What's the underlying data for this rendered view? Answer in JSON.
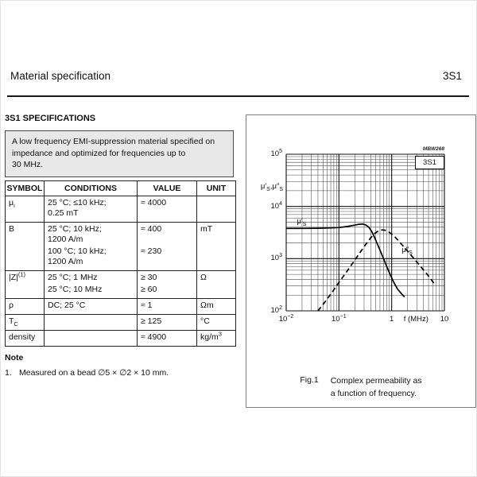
{
  "page": {
    "header_title": "Material specification",
    "header_code": "3S1"
  },
  "specs": {
    "section_title": "3S1 SPECIFICATIONS",
    "desc_lines": [
      "A low frequency EMI-suppression material specified on",
      "impedance and optimized for frequencies up to",
      "30 MHz."
    ],
    "table": {
      "headers": [
        "SYMBOL",
        "CONDITIONS",
        "VALUE",
        "UNIT"
      ],
      "rows": [
        {
          "symbol_html": "μ<sub>i</sub>",
          "unit_html": "",
          "subs": [
            {
              "cond": [
                "25 °C; ≤10 kHz;",
                "0.25 mT"
              ],
              "value": "≈ 4000"
            }
          ]
        },
        {
          "symbol_html": "B",
          "unit_html": "mT",
          "subs": [
            {
              "cond": [
                "25 °C; 10 kHz;",
                "1200 A/m"
              ],
              "value": "≈ 400"
            },
            {
              "cond": [
                "100 °C; 10 kHz;",
                "1200 A/m"
              ],
              "value": "≈ 230"
            }
          ]
        },
        {
          "symbol_html": "|Z|<sup>(1)</sup>",
          "unit_html": "Ω",
          "subs": [
            {
              "cond": [
                "25 °C; 1 MHz"
              ],
              "value": "≥ 30"
            },
            {
              "cond": [
                "25 °C; 10 MHz"
              ],
              "value": "≥ 60"
            }
          ]
        },
        {
          "symbol_html": "ρ",
          "unit_html": "Ωm",
          "subs": [
            {
              "cond": [
                "DC; 25 °C"
              ],
              "value": "≈ 1"
            }
          ]
        },
        {
          "symbol_html": "T<sub>C</sub>",
          "unit_html": "°C",
          "subs": [
            {
              "cond": [
                ""
              ],
              "value": "≥ 125"
            }
          ]
        },
        {
          "symbol_html": "density",
          "unit_html": "kg/m<sup>3</sup>",
          "subs": [
            {
              "cond": [
                ""
              ],
              "value": "≈ 4900"
            }
          ]
        }
      ]
    },
    "note_title": "Note",
    "notes": [
      {
        "num": "1.",
        "text": "Measured on a bead ∅5 × ∅2 × 10 mm."
      }
    ]
  },
  "figure": {
    "caption_label": "Fig.1",
    "caption_lines": [
      "Complex permeability as",
      "a function of frequency."
    ]
  },
  "chart_data": {
    "type": "line",
    "code": "MBW268",
    "box_label": "3S1",
    "xlabel": "f (MHz)",
    "ylabel_html": "μ′<sub>S</sub>,μ″<sub>S</sub>",
    "x_scale": "log",
    "y_scale": "log",
    "x_range": [
      0.01,
      10
    ],
    "y_range": [
      100,
      100000
    ],
    "grid": "log-minor-and-major",
    "legend_position": "inline-labels",
    "x_ticks": [
      {
        "v": 0.01,
        "html": "10<sup>−2</sup>"
      },
      {
        "v": 0.1,
        "html": "10<sup>−1</sup>"
      },
      {
        "v": 1,
        "html": "1"
      },
      {
        "v": 10,
        "html": "10"
      }
    ],
    "y_ticks": [
      {
        "v": 100000,
        "html": "10<sup>5</sup>"
      },
      {
        "v": 10000,
        "html": "10<sup>4</sup>"
      },
      {
        "v": 1000,
        "html": "10<sup>3</sup>"
      },
      {
        "v": 100,
        "html": "10<sup>2</sup>"
      }
    ],
    "series": [
      {
        "name": "mu-prime-s",
        "label_html": "μ′<sub>S</sub>",
        "dashed": false,
        "label_at": [
          0.016,
          6300
        ],
        "points": [
          [
            0.01,
            3800
          ],
          [
            0.02,
            3800
          ],
          [
            0.04,
            3820
          ],
          [
            0.07,
            3880
          ],
          [
            0.1,
            3950
          ],
          [
            0.14,
            4120
          ],
          [
            0.19,
            4350
          ],
          [
            0.24,
            4550
          ],
          [
            0.28,
            4600
          ],
          [
            0.32,
            4450
          ],
          [
            0.37,
            4000
          ],
          [
            0.42,
            3300
          ],
          [
            0.47,
            2600
          ],
          [
            0.53,
            1950
          ],
          [
            0.6,
            1450
          ],
          [
            0.7,
            1000
          ],
          [
            0.82,
            680
          ],
          [
            0.95,
            480
          ],
          [
            1.1,
            350
          ],
          [
            1.3,
            260
          ],
          [
            1.55,
            210
          ],
          [
            1.75,
            185
          ]
        ]
      },
      {
        "name": "mu-double-prime-s",
        "label_html": "μ″<sub>S</sub>",
        "dashed": true,
        "label_at": [
          1.55,
          1750
        ],
        "points": [
          [
            0.04,
            100
          ],
          [
            0.055,
            150
          ],
          [
            0.075,
            230
          ],
          [
            0.1,
            350
          ],
          [
            0.14,
            560
          ],
          [
            0.19,
            870
          ],
          [
            0.25,
            1300
          ],
          [
            0.32,
            1850
          ],
          [
            0.4,
            2500
          ],
          [
            0.48,
            3050
          ],
          [
            0.56,
            3400
          ],
          [
            0.65,
            3550
          ],
          [
            0.75,
            3500
          ],
          [
            0.88,
            3250
          ],
          [
            1.05,
            2850
          ],
          [
            1.25,
            2400
          ],
          [
            1.5,
            1950
          ],
          [
            1.85,
            1530
          ],
          [
            2.3,
            1180
          ],
          [
            2.9,
            900
          ],
          [
            3.6,
            690
          ],
          [
            4.5,
            530
          ],
          [
            5.5,
            410
          ],
          [
            6.3,
            340
          ]
        ]
      }
    ]
  }
}
